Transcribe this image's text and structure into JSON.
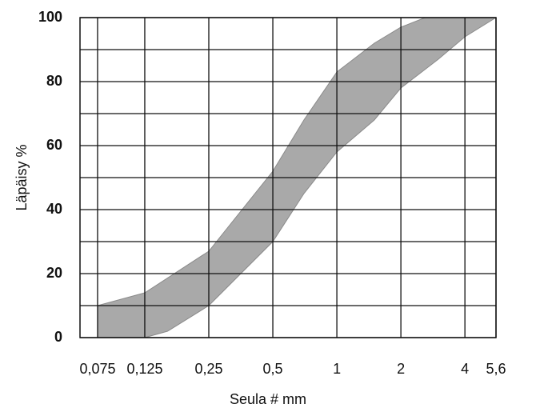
{
  "chart_data": {
    "type": "band",
    "xlabel": "Seula # mm",
    "ylabel": "Läpäisy %",
    "xscale": "log",
    "xlim": [
      0.062,
      5.6
    ],
    "ylim": [
      0,
      100
    ],
    "xticks": [
      {
        "value": 0.075,
        "label": "0,075"
      },
      {
        "value": 0.125,
        "label": "0,125"
      },
      {
        "value": 0.25,
        "label": "0,25"
      },
      {
        "value": 0.5,
        "label": "0,5"
      },
      1,
      2,
      4,
      {
        "value": 5.6,
        "label": "5,6"
      }
    ],
    "yticks": [
      0,
      20,
      40,
      60,
      80,
      100
    ],
    "minor_yticks": [
      10,
      30,
      50,
      70,
      90
    ],
    "grid": true,
    "color": "#a9a9a9",
    "series": [
      {
        "x": [
          0.075,
          0.125,
          0.25,
          0.5,
          0.7,
          1,
          1.5,
          2,
          2.6,
          5.6
        ],
        "values": [
          10,
          14,
          27,
          52,
          68,
          83,
          92,
          97,
          100,
          100
        ]
      },
      {
        "x": [
          0.075,
          0.125,
          0.16,
          0.25,
          0.5,
          0.7,
          1,
          1.5,
          2,
          3,
          4,
          5.6
        ],
        "values": [
          0,
          0,
          2,
          10,
          30,
          45,
          58,
          68,
          78,
          87,
          94,
          100
        ]
      }
    ]
  }
}
